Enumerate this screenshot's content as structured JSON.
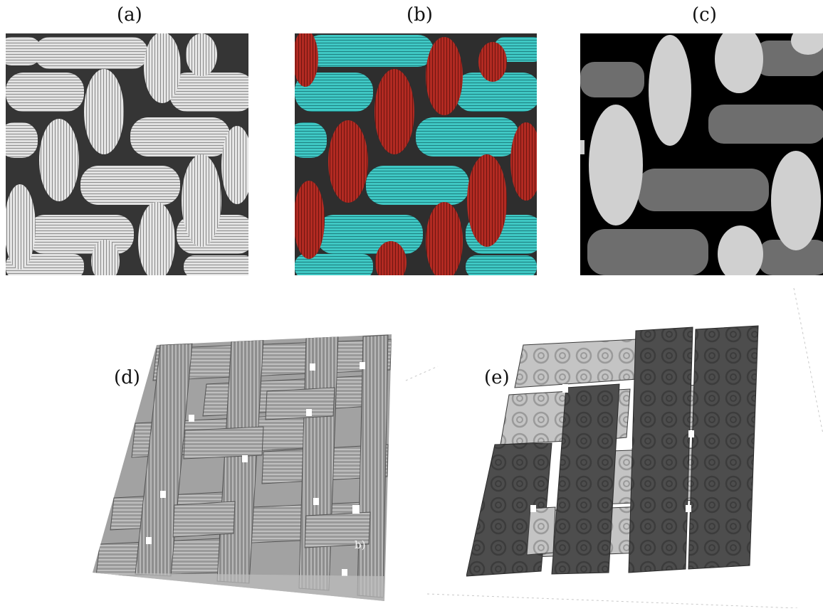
{
  "figure": {
    "panels": [
      {
        "id": "a",
        "label": "(a)",
        "kind": "grayscale-cross-section"
      },
      {
        "id": "b",
        "label": "(b)",
        "kind": "colored-segmentation",
        "colors": {
          "warp": "#b22a22",
          "weft": "#3fc8c4",
          "matrix": "#2e2e2e"
        }
      },
      {
        "id": "c",
        "label": "(c)",
        "kind": "label-map",
        "colors": {
          "background": "#000000",
          "light": "#d0d0d0",
          "dark": "#6e6e6e"
        }
      },
      {
        "id": "d",
        "label": "(d)",
        "kind": "3d-volume-rendering"
      },
      {
        "id": "e",
        "label": "(e)",
        "kind": "3d-segmented-model",
        "colors": {
          "light": "#c4c4c4",
          "dark": "#4d4d4d"
        }
      }
    ],
    "stray_text": "b)"
  }
}
